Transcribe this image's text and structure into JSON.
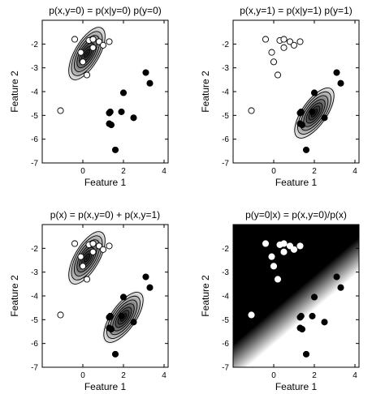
{
  "chart_data": [
    {
      "type": "scatter",
      "title": "p(x,y=0) = p(x|y=0) p(y=0)",
      "xlabel": "Feature 1",
      "ylabel": "Feature 2",
      "xlim": [
        -2,
        4.2
      ],
      "ylim": [
        -7,
        -1
      ],
      "xticks": [
        "0",
        "2",
        "4"
      ],
      "yticks": [
        "-2",
        "-3",
        "-4",
        "-5",
        "-6",
        "-7"
      ],
      "background": "contours-class0",
      "series": [
        {
          "marker": "open-circle",
          "x": [
            -0.4,
            -0.1,
            0.0,
            0.3,
            0.5,
            0.8,
            1.0,
            1.3,
            0.2,
            -1.1,
            0.5
          ],
          "y": [
            -1.8,
            -2.35,
            -2.75,
            -1.85,
            -2.15,
            -1.9,
            -2.05,
            -1.9,
            -3.3,
            -4.8,
            -1.8
          ]
        },
        {
          "marker": "filled-circle",
          "x": [
            1.3,
            1.3,
            1.4,
            1.9,
            2.0,
            2.5,
            1.6,
            3.1,
            3.3,
            1.35
          ],
          "y": [
            -4.9,
            -5.35,
            -5.4,
            -4.85,
            -4.05,
            -5.1,
            -6.45,
            -3.2,
            -3.65,
            -4.85
          ]
        }
      ]
    },
    {
      "type": "scatter",
      "title": "p(x,y=1) = p(x|y=1) p(y=1)",
      "xlabel": "Feature 1",
      "ylabel": "Feature 2",
      "xlim": [
        -2,
        4.2
      ],
      "ylim": [
        -7,
        -1
      ],
      "xticks": [
        "0",
        "2",
        "4"
      ],
      "yticks": [
        "-2",
        "-3",
        "-4",
        "-5",
        "-6",
        "-7"
      ],
      "background": "contours-class1",
      "series": [
        {
          "marker": "open-circle",
          "x": [
            -0.4,
            -0.1,
            0.0,
            0.3,
            0.5,
            0.8,
            1.0,
            1.3,
            0.2,
            -1.1,
            0.5
          ],
          "y": [
            -1.8,
            -2.35,
            -2.75,
            -1.85,
            -2.15,
            -1.9,
            -2.05,
            -1.9,
            -3.3,
            -4.8,
            -1.8
          ]
        },
        {
          "marker": "filled-circle",
          "x": [
            1.3,
            1.3,
            1.4,
            1.9,
            2.0,
            2.5,
            1.6,
            3.1,
            3.3,
            1.35
          ],
          "y": [
            -4.9,
            -5.35,
            -5.4,
            -4.85,
            -4.05,
            -5.1,
            -6.45,
            -3.2,
            -3.65,
            -4.85
          ]
        }
      ]
    },
    {
      "type": "scatter",
      "title": "p(x) = p(x,y=0) + p(x,y=1)",
      "xlabel": "Feature 1",
      "ylabel": "Feature 2",
      "xlim": [
        -2,
        4.2
      ],
      "ylim": [
        -7,
        -1
      ],
      "xticks": [
        "0",
        "2",
        "4"
      ],
      "yticks": [
        "-2",
        "-3",
        "-4",
        "-5",
        "-6",
        "-7"
      ],
      "background": "contours-both",
      "series": [
        {
          "marker": "open-circle",
          "x": [
            -0.4,
            -0.1,
            0.0,
            0.3,
            0.5,
            0.8,
            1.0,
            1.3,
            0.2,
            -1.1,
            0.5
          ],
          "y": [
            -1.8,
            -2.35,
            -2.75,
            -1.85,
            -2.15,
            -1.9,
            -2.05,
            -1.9,
            -3.3,
            -4.8,
            -1.8
          ]
        },
        {
          "marker": "filled-circle",
          "x": [
            1.3,
            1.3,
            1.4,
            1.9,
            2.0,
            2.5,
            1.6,
            3.1,
            3.3,
            1.35
          ],
          "y": [
            -4.9,
            -5.35,
            -5.4,
            -4.85,
            -4.05,
            -5.1,
            -6.45,
            -3.2,
            -3.65,
            -4.85
          ]
        }
      ]
    },
    {
      "type": "scatter",
      "title": "p(y=0|x) = p(x,y=0)/p(x)",
      "xlabel": "Feature 1",
      "ylabel": "Feature 2",
      "xlim": [
        -2,
        4.2
      ],
      "ylim": [
        -7,
        -1
      ],
      "xticks": [
        "0",
        "2",
        "4"
      ],
      "yticks": [
        "-2",
        "-3",
        "-4",
        "-5",
        "-6",
        "-7"
      ],
      "background": "posterior",
      "series": [
        {
          "marker": "filled-circle-white",
          "x": [
            -0.4,
            -0.1,
            0.0,
            0.3,
            0.5,
            0.8,
            1.0,
            1.3,
            0.2,
            -1.1,
            0.5
          ],
          "y": [
            -1.8,
            -2.35,
            -2.75,
            -1.85,
            -2.15,
            -1.9,
            -2.05,
            -1.9,
            -3.3,
            -4.8,
            -1.8
          ]
        },
        {
          "marker": "filled-circle",
          "x": [
            1.3,
            1.3,
            1.4,
            1.9,
            2.0,
            2.5,
            1.6,
            3.1,
            3.3,
            1.35
          ],
          "y": [
            -4.9,
            -5.35,
            -5.4,
            -4.85,
            -4.05,
            -5.1,
            -6.45,
            -3.2,
            -3.65,
            -4.85
          ]
        }
      ]
    }
  ]
}
